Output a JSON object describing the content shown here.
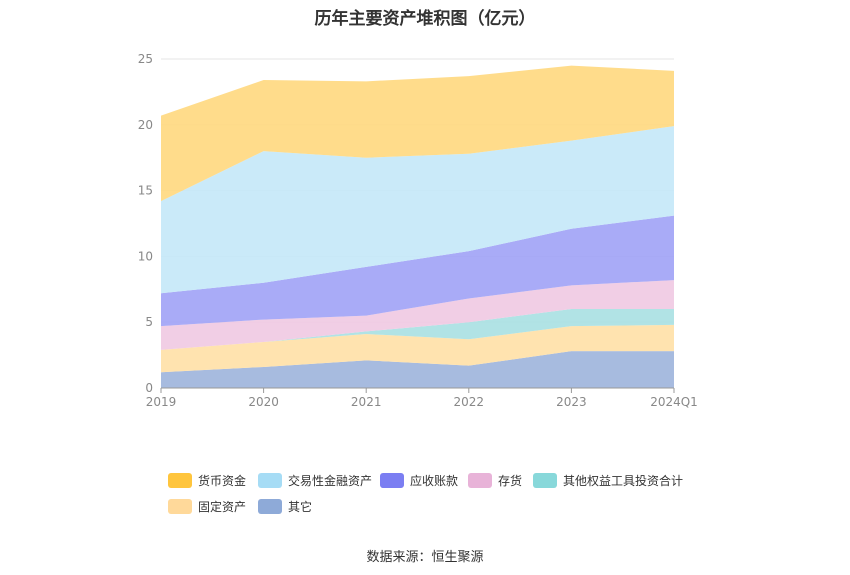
{
  "chart_data": {
    "type": "area",
    "stacked": true,
    "title": "历年主要资产堆积图（亿元）",
    "categories": [
      "2019",
      "2020",
      "2021",
      "2022",
      "2023",
      "2024Q1"
    ],
    "ylim": [
      0,
      25
    ],
    "yticks": [
      0,
      5,
      10,
      15,
      20,
      25
    ],
    "grid": true,
    "legend_position": "bottom",
    "series": [
      {
        "name": "其它",
        "color": "#9db4dc",
        "values": [
          1.2,
          1.6,
          2.1,
          1.7,
          2.8,
          2.8
        ]
      },
      {
        "name": "固定资产",
        "color": "#ffe0a6",
        "values": [
          1.7,
          1.9,
          2.0,
          2.0,
          1.9,
          2.0
        ]
      },
      {
        "name": "其他权益工具投资合计",
        "color": "#a8e0e2",
        "values": [
          0.0,
          0.0,
          0.2,
          1.3,
          1.3,
          1.2
        ]
      },
      {
        "name": "存货",
        "color": "#efc9e2",
        "values": [
          1.8,
          1.7,
          1.2,
          1.8,
          1.8,
          2.2
        ]
      },
      {
        "name": "应收账款",
        "color": "#a0a2f6",
        "values": [
          2.5,
          2.8,
          3.7,
          3.6,
          4.3,
          4.9
        ]
      },
      {
        "name": "交易性金融资产",
        "color": "#c4e8f8",
        "values": [
          7.0,
          10.0,
          8.3,
          7.4,
          6.7,
          6.8
        ]
      },
      {
        "name": "货币资金",
        "color": "#ffd87e",
        "values": [
          6.5,
          5.4,
          5.8,
          5.9,
          5.7,
          4.2
        ]
      }
    ]
  },
  "legend": [
    {
      "label": "货币资金",
      "color": "#ffc53d"
    },
    {
      "label": "交易性金融资产",
      "color": "#a6dcf5"
    },
    {
      "label": "应收账款",
      "color": "#7b7ef2"
    },
    {
      "label": "存货",
      "color": "#e8b3d8"
    },
    {
      "label": "其他权益工具投资合计",
      "color": "#88d8da"
    },
    {
      "label": "固定资产",
      "color": "#ffd99a"
    },
    {
      "label": "其它",
      "color": "#8eaad8"
    }
  ],
  "source": "数据来源：恒生聚源"
}
